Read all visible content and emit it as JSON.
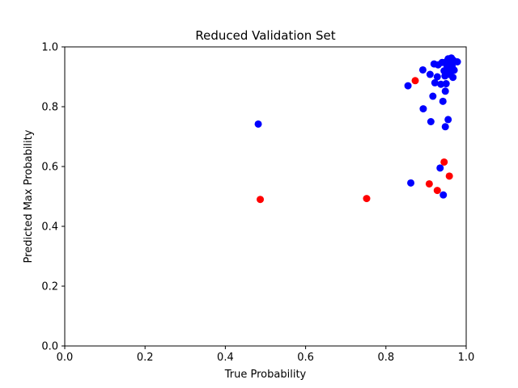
{
  "chart_data": {
    "type": "scatter",
    "title": "Reduced Validation Set",
    "xlabel": "True Probability",
    "ylabel": "Predicted Max Probability",
    "xlim": [
      0,
      1
    ],
    "ylim": [
      0,
      1
    ],
    "xticks": [
      "0.0",
      "0.2",
      "0.4",
      "0.6",
      "0.8",
      "1.0"
    ],
    "yticks": [
      "0.0",
      "0.2",
      "0.4",
      "0.6",
      "0.8",
      "1.0"
    ],
    "grid": false,
    "series": [
      {
        "color": "#0000ff",
        "points": [
          [
            0.482,
            0.742
          ],
          [
            0.855,
            0.87
          ],
          [
            0.862,
            0.545
          ],
          [
            0.892,
            0.923
          ],
          [
            0.893,
            0.793
          ],
          [
            0.91,
            0.908
          ],
          [
            0.912,
            0.75
          ],
          [
            0.917,
            0.835
          ],
          [
            0.92,
            0.943
          ],
          [
            0.922,
            0.88
          ],
          [
            0.928,
            0.9
          ],
          [
            0.93,
            0.94
          ],
          [
            0.935,
            0.595
          ],
          [
            0.937,
            0.875
          ],
          [
            0.94,
            0.948
          ],
          [
            0.942,
            0.818
          ],
          [
            0.943,
            0.505
          ],
          [
            0.945,
            0.92
          ],
          [
            0.947,
            0.903
          ],
          [
            0.948,
            0.852
          ],
          [
            0.948,
            0.733
          ],
          [
            0.95,
            0.95
          ],
          [
            0.95,
            0.877
          ],
          [
            0.952,
            0.938
          ],
          [
            0.955,
            0.757
          ],
          [
            0.955,
            0.96
          ],
          [
            0.957,
            0.928
          ],
          [
            0.958,
            0.908
          ],
          [
            0.96,
            0.945
          ],
          [
            0.962,
            0.918
          ],
          [
            0.963,
            0.963
          ],
          [
            0.965,
            0.935
          ],
          [
            0.967,
            0.898
          ],
          [
            0.968,
            0.955
          ],
          [
            0.97,
            0.922
          ],
          [
            0.978,
            0.95
          ]
        ]
      },
      {
        "color": "#ff0000",
        "points": [
          [
            0.487,
            0.49
          ],
          [
            0.752,
            0.493
          ],
          [
            0.873,
            0.887
          ],
          [
            0.908,
            0.542
          ],
          [
            0.928,
            0.52
          ],
          [
            0.945,
            0.615
          ],
          [
            0.958,
            0.568
          ]
        ]
      }
    ]
  }
}
